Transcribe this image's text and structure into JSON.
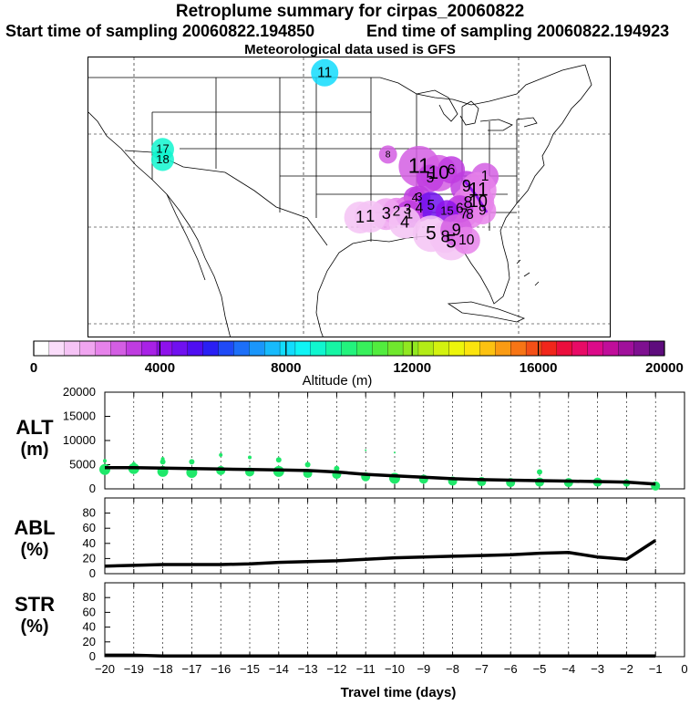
{
  "header": {
    "title": "Retroplume summary for cirpas_20060822",
    "start": "Start time of sampling 20060822.194850",
    "end": "End time of sampling 20060822.194923",
    "met": "Meteorological data used is GFS"
  },
  "map": {
    "labels": [
      {
        "text": "11",
        "lon": -97.0,
        "lat": 49.2,
        "size": 12,
        "alt": 8000
      },
      {
        "text": "17",
        "lon": -116.2,
        "lat": 40.2,
        "size": 10,
        "alt": 9000
      },
      {
        "text": "18",
        "lon": -116.2,
        "lat": 39.0,
        "size": 10,
        "alt": 9000
      },
      {
        "text": "8",
        "lon": -89.5,
        "lat": 39.6,
        "size": 8,
        "alt": 2500
      },
      {
        "text": "11",
        "lon": -85.8,
        "lat": 38.2,
        "size": 18,
        "alt": 2600
      },
      {
        "text": "10",
        "lon": -83.5,
        "lat": 37.4,
        "size": 16,
        "alt": 2500
      },
      {
        "text": "6",
        "lon": -82.0,
        "lat": 37.8,
        "size": 12,
        "alt": 3000
      },
      {
        "text": "5",
        "lon": -84.5,
        "lat": 36.8,
        "size": 12,
        "alt": 3000
      },
      {
        "text": "9",
        "lon": -80.2,
        "lat": 35.8,
        "size": 14,
        "alt": 2800
      },
      {
        "text": "1",
        "lon": -78.0,
        "lat": 37.0,
        "size": 12,
        "alt": 2600
      },
      {
        "text": "11",
        "lon": -78.8,
        "lat": 35.4,
        "size": 16,
        "alt": 2000
      },
      {
        "text": "8",
        "lon": -80.0,
        "lat": 33.9,
        "size": 14,
        "alt": 2000
      },
      {
        "text": "10",
        "lon": -78.8,
        "lat": 34.0,
        "size": 14,
        "alt": 2000
      },
      {
        "text": "9",
        "lon": -78.3,
        "lat": 33.0,
        "size": 12,
        "alt": 1800
      },
      {
        "text": "7",
        "lon": -80.5,
        "lat": 32.6,
        "size": 12,
        "alt": 1800
      },
      {
        "text": "8",
        "lon": -79.8,
        "lat": 32.5,
        "size": 12,
        "alt": 1800
      },
      {
        "text": "6",
        "lon": -81.0,
        "lat": 33.2,
        "size": 12,
        "alt": 3000
      },
      {
        "text": "4",
        "lon": -86.3,
        "lat": 34.5,
        "size": 10,
        "alt": 3000
      },
      {
        "text": "3",
        "lon": -85.8,
        "lat": 34.6,
        "size": 10,
        "alt": 3000
      },
      {
        "text": "4",
        "lon": -85.8,
        "lat": 33.3,
        "size": 12,
        "alt": 3000
      },
      {
        "text": "5",
        "lon": -84.4,
        "lat": 33.6,
        "size": 12,
        "alt": 4500
      },
      {
        "text": "3",
        "lon": -87.2,
        "lat": 33.1,
        "size": 12,
        "alt": 2500
      },
      {
        "text": "2",
        "lon": -88.5,
        "lat": 32.9,
        "size": 12,
        "alt": 2000
      },
      {
        "text": "3",
        "lon": -89.7,
        "lat": 32.6,
        "size": 14,
        "alt": 1500
      },
      {
        "text": "1",
        "lon": -91.6,
        "lat": 32.3,
        "size": 14,
        "alt": 1200
      },
      {
        "text": "1",
        "lon": -92.8,
        "lat": 32.2,
        "size": 14,
        "alt": 1200
      },
      {
        "text": "1",
        "lon": -87.0,
        "lat": 32.6,
        "size": 12,
        "alt": 3200
      },
      {
        "text": "4",
        "lon": -87.5,
        "lat": 31.6,
        "size": 14,
        "alt": 1000
      },
      {
        "text": "15",
        "lon": -82.5,
        "lat": 32.9,
        "size": 10,
        "alt": 3800
      },
      {
        "text": "5",
        "lon": -84.4,
        "lat": 30.3,
        "size": 16,
        "alt": 1200
      },
      {
        "text": "8",
        "lon": -82.7,
        "lat": 29.9,
        "size": 14,
        "alt": 1000
      },
      {
        "text": "5",
        "lon": -82.0,
        "lat": 29.3,
        "size": 16,
        "alt": 1000
      },
      {
        "text": "9",
        "lon": -81.4,
        "lat": 30.7,
        "size": 14,
        "alt": 2500
      },
      {
        "text": "10",
        "lon": -80.2,
        "lat": 29.5,
        "size": 12,
        "alt": 2000
      }
    ]
  },
  "colorbar": {
    "ticks": [
      "0",
      "4000",
      "8000",
      "12000",
      "16000",
      "20000"
    ],
    "label": "Altitude (m)",
    "colors": [
      "#ffffff",
      "#fadcfa",
      "#f5c3f5",
      "#f0a5f0",
      "#e682ea",
      "#d35ee3",
      "#bf3ce0",
      "#a821e6",
      "#8e12eb",
      "#7010ef",
      "#4f0ef1",
      "#2a1ff4",
      "#1f4af6",
      "#1d6ff8",
      "#1a96fb",
      "#17bafc",
      "#12dcfd",
      "#0ff4f5",
      "#10f6cf",
      "#16f5a4",
      "#23f37d",
      "#38f05b",
      "#52ec3e",
      "#70e82d",
      "#91e820",
      "#b3ec16",
      "#d3f20f",
      "#edf50b",
      "#fbe40e",
      "#fcc211",
      "#fa9b13",
      "#f77515",
      "#f44f17",
      "#f1261b",
      "#eb0e3d",
      "#e80b66",
      "#dc0a89",
      "#c00d9a",
      "#a0109b",
      "#7e1090",
      "#5e0c7d"
    ]
  },
  "chart_data": [
    {
      "type": "scatter",
      "title": "",
      "ylabel": "ALT (m)",
      "xlabel": "",
      "ylim": [
        0,
        20000
      ],
      "yticks": [
        "20000",
        "15000",
        "10000",
        "5000",
        "0"
      ],
      "grid": true,
      "line_x": [
        -20,
        -19,
        -18,
        -17,
        -16,
        -15,
        -14,
        -13,
        -12,
        -11,
        -10,
        -9,
        -8,
        -7,
        -6,
        -5,
        -4,
        -3,
        -2,
        -1
      ],
      "line_y": [
        4400,
        4400,
        4300,
        4200,
        4100,
        4000,
        3900,
        3800,
        3500,
        3000,
        2700,
        2400,
        2100,
        1900,
        1800,
        1700,
        1600,
        1500,
        1400,
        1000
      ],
      "dots_x": [
        -20,
        -20,
        -19,
        -19,
        -18,
        -18,
        -18,
        -17,
        -17,
        -16,
        -16,
        -15,
        -15,
        -14,
        -14,
        -13,
        -13,
        -12,
        -12,
        -11,
        -11,
        -10,
        -10,
        -9,
        -8,
        -7,
        -6,
        -5,
        -5,
        -4,
        -3,
        -2,
        -1
      ],
      "dots_y": [
        4000,
        5800,
        4200,
        5200,
        3600,
        5600,
        6200,
        3400,
        5600,
        3800,
        7000,
        3500,
        6500,
        3600,
        6000,
        3200,
        5000,
        3000,
        4200,
        2500,
        8000,
        2200,
        7500,
        2000,
        1600,
        1500,
        1300,
        1400,
        3500,
        1300,
        1400,
        1200,
        600
      ],
      "dots_r": [
        6,
        2,
        6,
        2,
        6,
        3,
        2,
        6,
        3,
        5,
        2,
        5,
        2,
        6,
        3,
        5,
        3,
        5,
        3,
        5,
        1,
        6,
        1,
        5,
        5,
        5,
        5,
        5,
        3,
        5,
        5,
        4,
        5
      ]
    },
    {
      "type": "line",
      "ylabel": "ABL (%)",
      "ylim": [
        0,
        100
      ],
      "yticks": [
        "80",
        "60",
        "40",
        "20",
        "0"
      ],
      "grid": true,
      "x": [
        -20,
        -19,
        -18,
        -17,
        -16,
        -15,
        -14,
        -13,
        -12,
        -11,
        -10,
        -9,
        -8,
        -7,
        -6,
        -5,
        -4,
        -3,
        -2,
        -1
      ],
      "y": [
        10,
        11,
        12,
        12,
        12,
        13,
        15,
        16,
        17,
        19,
        21,
        22,
        23,
        24,
        25,
        27,
        28,
        22,
        19,
        44
      ]
    },
    {
      "type": "line",
      "ylabel": "STR (%)",
      "xlabel": "Travel time (days)",
      "ylim": [
        0,
        100
      ],
      "yticks": [
        "80",
        "60",
        "40",
        "20",
        "0"
      ],
      "xticks": [
        "−20",
        "−19",
        "−18",
        "−17",
        "−16",
        "−15",
        "−14",
        "−13",
        "−12",
        "−11",
        "−10",
        "−9",
        "−8",
        "−7",
        "−6",
        "−5",
        "−4",
        "−3",
        "−2",
        "−1",
        "0"
      ],
      "grid": true,
      "x": [
        -20,
        -19,
        -18,
        -17,
        -16,
        -15,
        -14,
        -13,
        -12,
        -11,
        -10,
        -9,
        -8,
        -7,
        -6,
        -5,
        -4,
        -3,
        -2,
        -1
      ],
      "y": [
        2,
        2,
        1,
        1,
        1,
        1,
        1,
        1,
        1,
        1,
        1,
        1,
        1,
        1,
        1,
        1,
        1,
        1,
        1,
        1
      ]
    }
  ],
  "panel_labels": {
    "alt": [
      "ALT",
      "(m)"
    ],
    "abl": [
      "ABL",
      "(%)"
    ],
    "str": [
      "STR",
      "(%)"
    ]
  },
  "colors": {
    "dots": "#1fe86a",
    "line": "#000000",
    "grid": "#000000"
  }
}
